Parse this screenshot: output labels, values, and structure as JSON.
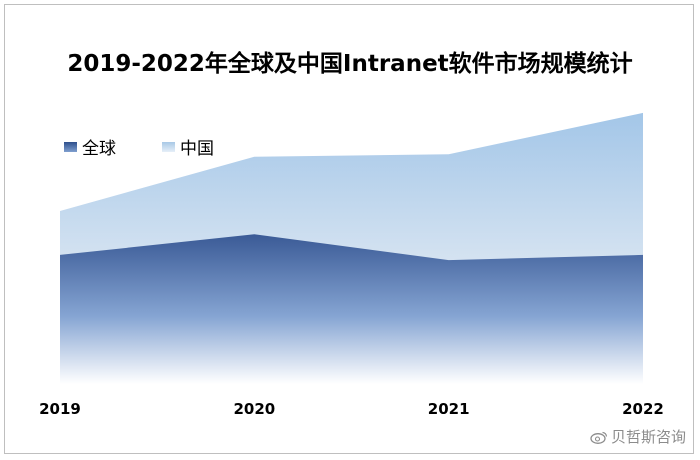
{
  "chart_data": {
    "type": "area",
    "title": "2019-2022年全球及中国Intranet软件市场规模统计",
    "categories": [
      "2019",
      "2020",
      "2021",
      "2022"
    ],
    "series": [
      {
        "name": "全球",
        "values": [
          100,
          116,
          96,
          100
        ],
        "color": "#3a5a96"
      },
      {
        "name": "中国",
        "values": [
          134,
          176,
          178,
          210
        ],
        "color": "#a8c8e6"
      }
    ],
    "ylim": [
      0,
      220
    ],
    "grid": false,
    "legend": "top-left"
  },
  "watermark": {
    "text": "贝哲斯咨询",
    "icon": "weibo-icon"
  }
}
